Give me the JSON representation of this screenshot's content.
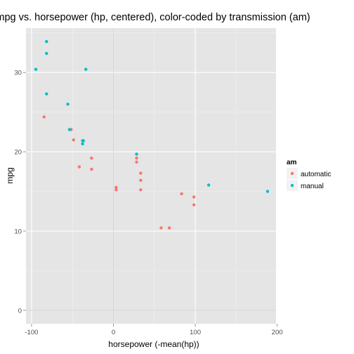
{
  "chart_data": {
    "type": "scatter",
    "title": "mpg vs. horsepower (hp, centered), color-coded by transmission (am)",
    "xlabel": "horsepower (-mean(hp))",
    "ylabel": "mpg",
    "xlim": [
      -106.8,
      198.6
    ],
    "ylim": [
      -1.7,
      35.6
    ],
    "x_ticks": [
      -100,
      0,
      100,
      200
    ],
    "x_tick_labels": [
      "-100",
      "0",
      "100",
      "200"
    ],
    "y_ticks": [
      0,
      10,
      20,
      30
    ],
    "y_tick_labels": [
      "0",
      "10",
      "20",
      "30"
    ],
    "grid": true,
    "legend": {
      "title": "am",
      "position": "right"
    },
    "colors": {
      "automatic": "#F8766D",
      "manual": "#00BFC4",
      "panel": "#E5E5E5",
      "grid_major": "#FFFFFF",
      "grid_minor": "#F2F2F2",
      "zero_line": "#CCCCCC"
    },
    "series": [
      {
        "name": "automatic",
        "points": [
          [
            -84.7,
            24.4
          ],
          [
            -51.7,
            22.8
          ],
          [
            -48.7,
            21.5
          ],
          [
            -41.7,
            18.1
          ],
          [
            -26.7,
            19.2
          ],
          [
            -26.7,
            17.8
          ],
          [
            3.3,
            15.5
          ],
          [
            3.3,
            15.2
          ],
          [
            28.3,
            19.2
          ],
          [
            28.3,
            18.7
          ],
          [
            33.3,
            17.3
          ],
          [
            33.3,
            16.4
          ],
          [
            33.3,
            15.2
          ],
          [
            58.3,
            10.4
          ],
          [
            68.3,
            10.4
          ],
          [
            83.3,
            14.7
          ],
          [
            98.3,
            14.3
          ],
          [
            98.3,
            13.3
          ],
          [
            -51.7,
            22.8
          ]
        ]
      },
      {
        "name": "manual",
        "points": [
          [
            -94.7,
            30.4
          ],
          [
            -81.7,
            33.9
          ],
          [
            -81.7,
            32.4
          ],
          [
            -81.7,
            27.3
          ],
          [
            -33.7,
            30.4
          ],
          [
            -55.7,
            26.0
          ],
          [
            -53.7,
            22.8
          ],
          [
            -37.7,
            21.4
          ],
          [
            -37.7,
            21.0
          ],
          [
            28.3,
            19.7
          ],
          [
            116.3,
            15.8
          ],
          [
            188.3,
            15.0
          ],
          [
            -36.7,
            21.4
          ]
        ]
      }
    ]
  }
}
